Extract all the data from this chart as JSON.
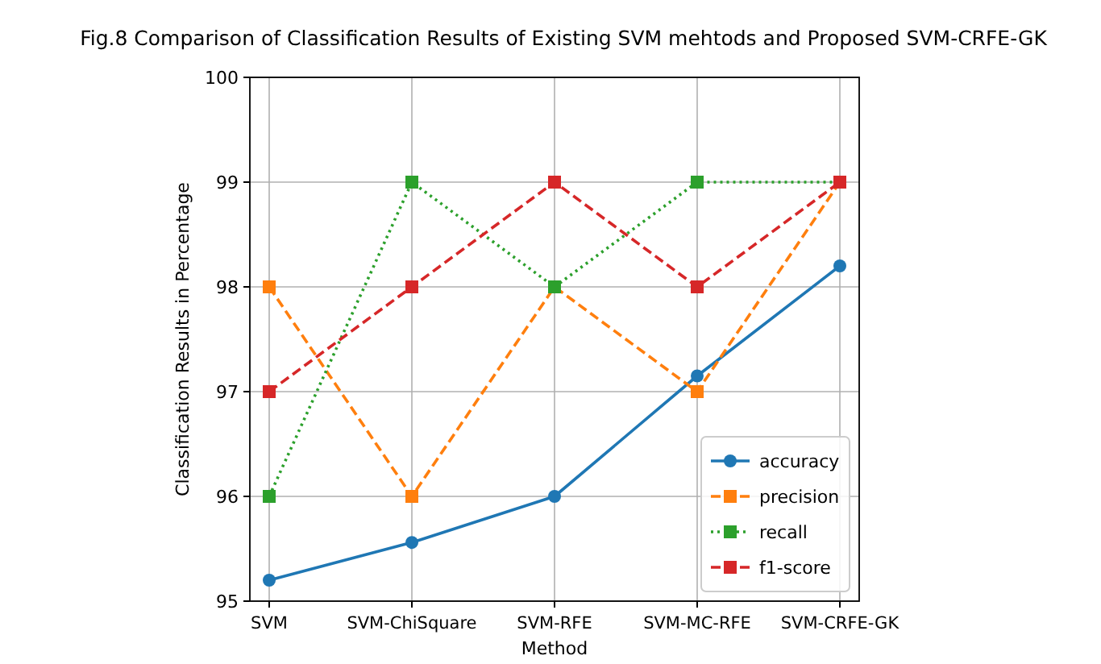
{
  "chart_data": {
    "type": "line",
    "title": "Fig.8 Comparison of Classification Results of Existing SVM mehtods and Proposed SVM-CRFE-GK",
    "xlabel": "Method",
    "ylabel": "Classification Results in Percentage",
    "categories": [
      "SVM",
      "SVM-ChiSquare",
      "SVM-RFE",
      "SVM-MC-RFE",
      "SVM-CRFE-GK"
    ],
    "series": [
      {
        "name": "accuracy",
        "color": "#1f77b4",
        "values": [
          95.2,
          95.56,
          96.0,
          97.15,
          98.2
        ],
        "marker": "circle",
        "line_style": "solid"
      },
      {
        "name": "precision",
        "color": "#ff7f0e",
        "values": [
          98,
          96,
          98,
          97,
          99
        ],
        "marker": "square",
        "line_style": "dashed"
      },
      {
        "name": "recall",
        "color": "#2ca02c",
        "values": [
          96,
          99,
          98,
          99,
          99
        ],
        "marker": "square",
        "line_style": "dotted"
      },
      {
        "name": "f1-score",
        "color": "#d62728",
        "values": [
          97,
          98,
          99,
          98,
          99
        ],
        "marker": "square",
        "line_style": "dashed"
      }
    ],
    "ylim": [
      95,
      100
    ],
    "yticks": [
      95,
      96,
      97,
      98,
      99,
      100
    ],
    "grid": true,
    "legend": "bottom right"
  }
}
